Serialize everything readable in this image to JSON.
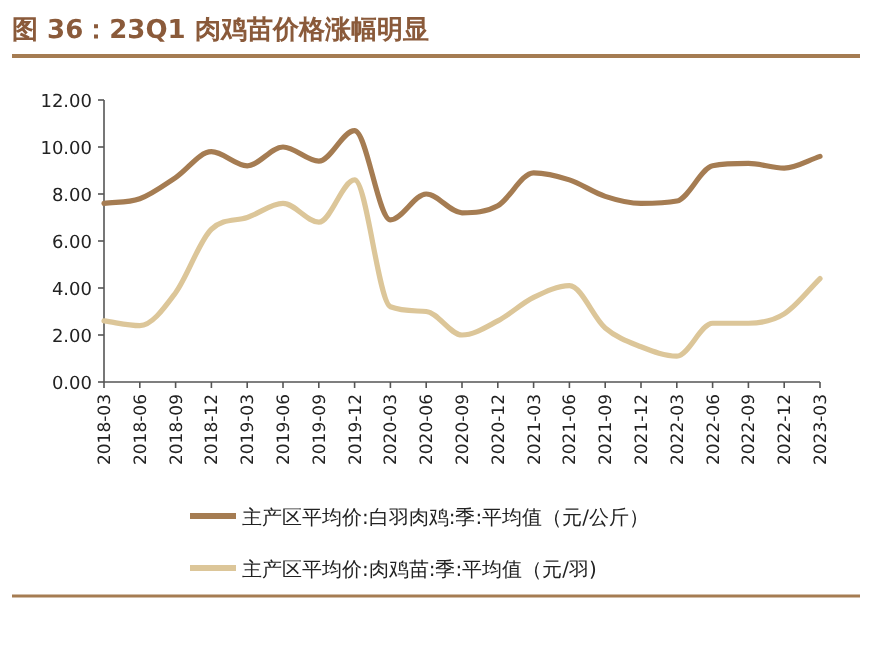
{
  "chart_data": {
    "type": "line",
    "title": "图 36：23Q1 肉鸡苗价格涨幅明显",
    "categories": [
      "2018-03",
      "2018-06",
      "2018-09",
      "2018-12",
      "2019-03",
      "2019-06",
      "2019-09",
      "2019-12",
      "2020-03",
      "2020-06",
      "2020-09",
      "2020-12",
      "2021-03",
      "2021-06",
      "2021-09",
      "2021-12",
      "2022-03",
      "2022-06",
      "2022-09",
      "2022-12",
      "2023-03"
    ],
    "series": [
      {
        "name": "主产区平均价:白羽肉鸡:季:平均值（元/公斤）",
        "color": "#a57c52",
        "values": [
          7.6,
          7.8,
          8.7,
          9.8,
          9.2,
          10.0,
          9.4,
          10.7,
          6.9,
          8.0,
          7.2,
          7.5,
          8.9,
          8.6,
          7.9,
          7.6,
          7.7,
          9.2,
          9.3,
          9.1,
          9.6
        ]
      },
      {
        "name": "主产区平均价:肉鸡苗:季:平均值（元/羽)",
        "color": "#dcc699",
        "values": [
          2.6,
          2.4,
          3.8,
          6.5,
          7.0,
          7.6,
          6.8,
          8.6,
          3.2,
          3.0,
          2.0,
          2.6,
          3.6,
          4.1,
          2.3,
          1.5,
          1.1,
          2.5,
          2.5,
          2.9,
          4.4
        ]
      }
    ],
    "ylim": [
      0,
      12
    ],
    "yticks": [
      {
        "value": 0,
        "label": "0.00"
      },
      {
        "value": 2,
        "label": "2.00"
      },
      {
        "value": 4,
        "label": "4.00"
      },
      {
        "value": 6,
        "label": "6.00"
      },
      {
        "value": 8,
        "label": "8.00"
      },
      {
        "value": 10,
        "label": "10.00"
      },
      {
        "value": 12,
        "label": "12.00"
      }
    ],
    "grid": false,
    "legend": "bottom",
    "marker": "none",
    "line_style": "solid"
  }
}
